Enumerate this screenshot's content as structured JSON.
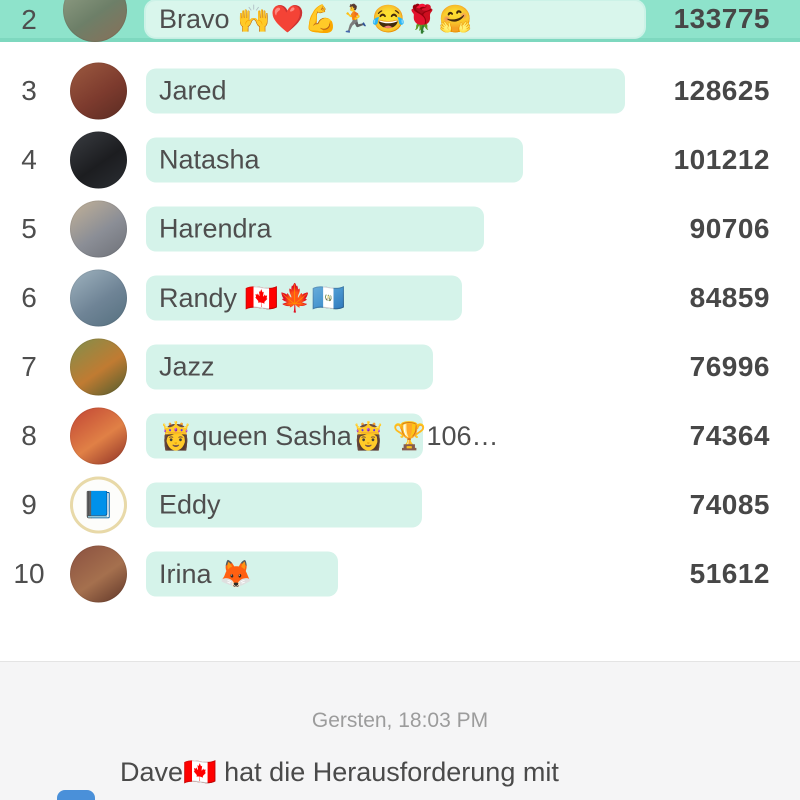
{
  "colors": {
    "highlight_row_bg": "#8ee3cb",
    "highlight_row_border": "#7ed8bf",
    "highlight_pill_bg": "#d9f6ec",
    "bar_bg": "#d5f3ea",
    "name_text": "#4e4e4e",
    "score_text": "#474747",
    "timestamp_text": "#9c9c9c",
    "feed_bg": "#f5f5f6",
    "message_avatar_blue": "#4a90d9"
  },
  "leaderboard": {
    "entries": [
      {
        "rank": "2",
        "name": "Bravo 🙌❤️💪🏃😂🌹🤗",
        "score": "133775",
        "score_value": 133775,
        "highlighted": true,
        "avatar": {
          "kind": "photo",
          "colors": [
            "#96a389",
            "#6d7f68",
            "#8a6f58"
          ]
        }
      },
      {
        "rank": "3",
        "name": "Jared",
        "score": "128625",
        "score_value": 128625,
        "highlighted": false,
        "avatar": {
          "kind": "photo",
          "colors": [
            "#9c5a40",
            "#7d3b2e",
            "#5a2b22"
          ]
        }
      },
      {
        "rank": "4",
        "name": "Natasha",
        "score": "101212",
        "score_value": 101212,
        "highlighted": false,
        "avatar": {
          "kind": "photo",
          "colors": [
            "#3a3d42",
            "#1c1d20",
            "#2b2e33"
          ]
        }
      },
      {
        "rank": "5",
        "name": "Harendra",
        "score": "90706",
        "score_value": 90706,
        "highlighted": false,
        "avatar": {
          "kind": "photo",
          "colors": [
            "#c3b298",
            "#8b8e96",
            "#6e7178"
          ]
        }
      },
      {
        "rank": "6",
        "name": "Randy 🇨🇦🍁🇬🇹",
        "score": "84859",
        "score_value": 84859,
        "highlighted": false,
        "avatar": {
          "kind": "photo",
          "colors": [
            "#9fb3bf",
            "#6f8496",
            "#55707f"
          ]
        }
      },
      {
        "rank": "7",
        "name": "Jazz",
        "score": "76996",
        "score_value": 76996,
        "highlighted": false,
        "avatar": {
          "kind": "photo",
          "colors": [
            "#7f8f4c",
            "#c07b32",
            "#4d5c2e"
          ]
        }
      },
      {
        "rank": "8",
        "name": "👸queen Sasha👸 🏆106…",
        "score": "74364",
        "score_value": 74364,
        "highlighted": false,
        "avatar": {
          "kind": "photo",
          "colors": [
            "#c14434",
            "#e08046",
            "#8d2f26"
          ]
        }
      },
      {
        "rank": "9",
        "name": "Eddy",
        "score": "74085",
        "score_value": 74085,
        "highlighted": false,
        "avatar": {
          "kind": "logo",
          "colors": [
            "#fdfdfb"
          ],
          "icon": "📘"
        }
      },
      {
        "rank": "10",
        "name": "Irina 🦊",
        "score": "51612",
        "score_value": 51612,
        "highlighted": false,
        "avatar": {
          "kind": "photo",
          "colors": [
            "#8a5040",
            "#a5704e",
            "#5f3528"
          ]
        }
      }
    ]
  },
  "feed": {
    "timestamp": "Gersten, 18:03 PM",
    "message": "Dave🇨🇦 hat die Herausforderung mit"
  },
  "chart_data": {
    "type": "bar",
    "orientation": "horizontal",
    "categories": [
      "Bravo",
      "Jared",
      "Natasha",
      "Harendra",
      "Randy",
      "Jazz",
      "queen Sasha",
      "Eddy",
      "Irina"
    ],
    "values": [
      133775,
      128625,
      101212,
      90706,
      84859,
      76996,
      74364,
      74085,
      51612
    ],
    "title": "",
    "xlabel": "",
    "ylabel": "",
    "legend": false
  }
}
